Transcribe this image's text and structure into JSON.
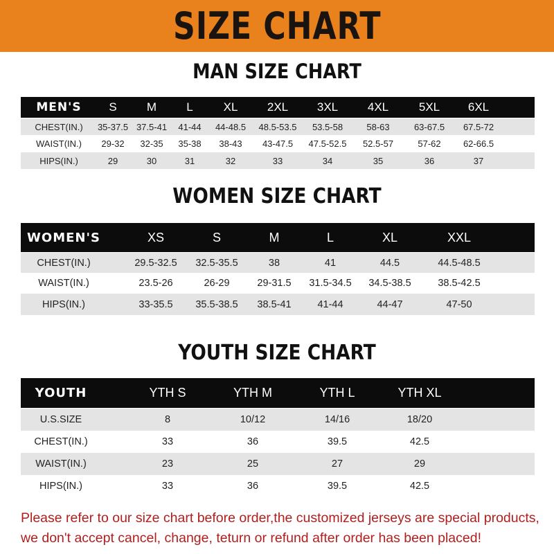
{
  "banner": {
    "title": "SIZE CHART",
    "color": "#e9821d"
  },
  "men": {
    "title": "MAN SIZE CHART",
    "header": [
      "MEN'S",
      "S",
      "M",
      "L",
      "XL",
      "2XL",
      "3XL",
      "4XL",
      "5XL",
      "6XL"
    ],
    "rows": [
      [
        "CHEST(IN.)",
        "35-37.5",
        "37.5-41",
        "41-44",
        "44-48.5",
        "48.5-53.5",
        "53.5-58",
        "58-63",
        "63-67.5",
        "67.5-72"
      ],
      [
        "WAIST(IN.)",
        "29-32",
        "32-35",
        "35-38",
        "38-43",
        "43-47.5",
        "47.5-52.5",
        "52.5-57",
        "57-62",
        "62-66.5"
      ],
      [
        "HIPS(IN.)",
        "29",
        "30",
        "31",
        "32",
        "33",
        "34",
        "35",
        "36",
        "37"
      ]
    ]
  },
  "women": {
    "title": "WOMEN SIZE CHART",
    "header": [
      "WOMEN'S",
      "XS",
      "S",
      "M",
      "L",
      "XL",
      "XXL"
    ],
    "rows": [
      [
        "CHEST(IN.)",
        "29.5-32.5",
        "32.5-35.5",
        "38",
        "41",
        "44.5",
        "44.5-48.5"
      ],
      [
        "WAIST(IN.)",
        "23.5-26",
        "26-29",
        "29-31.5",
        "31.5-34.5",
        "34.5-38.5",
        "38.5-42.5"
      ],
      [
        "HIPS(IN.)",
        "33-35.5",
        "35.5-38.5",
        "38.5-41",
        "41-44",
        "44-47",
        "47-50"
      ]
    ]
  },
  "youth": {
    "title": "YOUTH SIZE CHART",
    "header": [
      "YOUTH",
      "YTH S",
      "YTH M",
      "YTH L",
      "YTH XL"
    ],
    "rows": [
      [
        "U.S.SIZE",
        "8",
        "10/12",
        "14/16",
        "18/20"
      ],
      [
        "CHEST(IN.)",
        "33",
        "36",
        "39.5",
        "42.5"
      ],
      [
        "WAIST(IN.)",
        "23",
        "25",
        "27",
        "29"
      ],
      [
        "HIPS(IN.)",
        "33",
        "36",
        "39.5",
        "42.5"
      ]
    ]
  },
  "note": {
    "line1": "Please refer to our size chart before order,the customized jerseys are special products,",
    "line2": "we don't accept cancel, change, teturn or refund after order has been placed!",
    "color": "#b01e1e"
  }
}
